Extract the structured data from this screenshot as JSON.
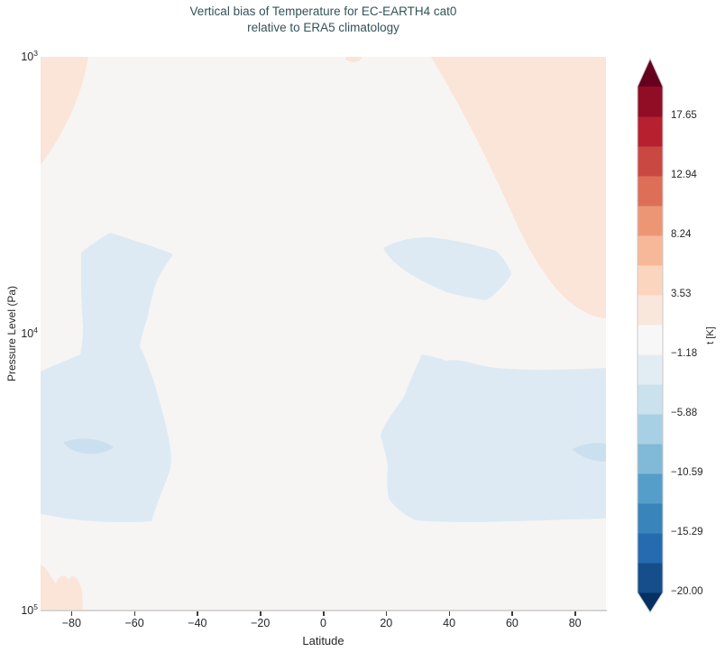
{
  "title": {
    "line1": "Vertical bias of Temperature for EC-EARTH4 cat0",
    "line2": "relative to ERA5 climatology"
  },
  "axes": {
    "x": {
      "label": "Latitude",
      "range": [
        -90,
        90
      ],
      "ticks": [
        {
          "value": -80,
          "label": "−80"
        },
        {
          "value": -60,
          "label": "−60"
        },
        {
          "value": -40,
          "label": "−40"
        },
        {
          "value": -20,
          "label": "−20"
        },
        {
          "value": 0,
          "label": "0"
        },
        {
          "value": 20,
          "label": "20"
        },
        {
          "value": 40,
          "label": "40"
        },
        {
          "value": 60,
          "label": "60"
        },
        {
          "value": 80,
          "label": "80"
        }
      ]
    },
    "y": {
      "label": "Pressure Level (Pa)",
      "scale": "log",
      "ticks": [
        {
          "base": "10",
          "exp": "3"
        },
        {
          "base": "10",
          "exp": "4"
        },
        {
          "base": "10",
          "exp": "5"
        }
      ]
    }
  },
  "colorbar": {
    "label": "t [K]",
    "tick_labels_top_to_bottom": [
      "17.65",
      "12.94",
      "8.24",
      "3.53",
      "−1.18",
      "−5.88",
      "−10.59",
      "−15.29",
      "−20.00"
    ],
    "range": [
      -20,
      20
    ],
    "level_step": 2.353,
    "under_color": "#053061",
    "over_color": "#67001F",
    "segments_bottom_to_top": [
      "#154E8B",
      "#256BAF",
      "#3884BB",
      "#559EC9",
      "#80BAD8",
      "#A7D0E4",
      "#CAE1EE",
      "#E2EDF3",
      "#F7F7F7",
      "#FAE7DC",
      "#FCD5BF",
      "#F7B799",
      "#ED9676",
      "#DD6F59",
      "#CA4842",
      "#B6202F",
      "#910D26"
    ],
    "outline_color": "#c9c9c9"
  },
  "colors": {
    "page_background": "#ffffff",
    "plot_background": "#f6f5f4",
    "warm_light": "#fae5d8",
    "cool_light": "#deeaf3",
    "cool_mid": "#cbe0ee",
    "title_text": "#325359",
    "tick_text": "#262626",
    "spine": "#d6d5d4"
  },
  "chart_data": {
    "type": "heatmap",
    "subtype": "filled-contour",
    "title": "Vertical bias of Temperature for EC-EARTH4 cat0 relative to ERA5 climatology",
    "xlabel": "Latitude",
    "ylabel": "Pressure Level (Pa)",
    "value_label": "t [K]",
    "x_range": [
      -90,
      90
    ],
    "y_scale": "log",
    "y_range_pa": [
      1000,
      100000
    ],
    "colormap": "RdBu_r diverging, discrete levels, extend both ends",
    "contour_levels": [
      -20.0,
      -17.65,
      -15.29,
      -12.94,
      -10.59,
      -8.24,
      -5.88,
      -3.53,
      -1.18,
      1.18,
      3.53,
      5.88,
      8.24,
      10.59,
      12.94,
      15.29,
      17.65,
      20.0
    ],
    "background_value_range_k": [
      -1.18,
      1.18
    ],
    "features": [
      {
        "sign": "warm",
        "value_range_k": [
          1.18,
          3.53
        ],
        "lat_range": [
          -90,
          -75
        ],
        "pressure_pa_range": [
          1000,
          2400
        ],
        "description": "pale orange wedge in top-left corner"
      },
      {
        "sign": "warm",
        "value_range_k": [
          1.18,
          3.53
        ],
        "lat_range": [
          34,
          90
        ],
        "pressure_pa_range": [
          1000,
          8700
        ],
        "description": "large pale orange region across top-right corner"
      },
      {
        "sign": "warm",
        "value_range_k": [
          1.18,
          3.53
        ],
        "lat_range": [
          6,
          11
        ],
        "pressure_pa_range": [
          1000,
          1100
        ],
        "description": "tiny pale orange bump at top edge near lat 8"
      },
      {
        "sign": "warm",
        "value_range_k": [
          1.18,
          3.53
        ],
        "lat_range": [
          -90,
          -77
        ],
        "pressure_pa_range": [
          69000,
          100000
        ],
        "description": "pale orange patch in bottom-left corner with wiggly top edge"
      },
      {
        "sign": "cool",
        "value_range_k": [
          -3.53,
          -1.18
        ],
        "lat_range": [
          -78,
          -48
        ],
        "pressure_pa_range": [
          4300,
          11000
        ],
        "description": "light blue blob upper southern mid-levels, narrowing downward into a column"
      },
      {
        "sign": "cool",
        "value_range_k": [
          -3.53,
          -1.18
        ],
        "lat_range": [
          19,
          63
        ],
        "pressure_pa_range": [
          4500,
          7900
        ],
        "description": "light blue blob upper northern mid-levels with jagged lower edge"
      },
      {
        "sign": "cool",
        "value_range_k": [
          -3.53,
          -1.18
        ],
        "lat_range": [
          -90,
          -50
        ],
        "pressure_pa_range": [
          11800,
          47000
        ],
        "description": "broad light blue lower-tropospheric region, southern high latitudes"
      },
      {
        "sign": "cool",
        "value_range_k": [
          -3.53,
          -1.18
        ],
        "lat_range": [
          17,
          90
        ],
        "pressure_pa_range": [
          11800,
          47000
        ],
        "description": "broad light blue lower-tropospheric region, northern mid-to-high latitudes"
      },
      {
        "sign": "cool",
        "value_range_k": [
          -5.88,
          -3.53
        ],
        "lat_range": [
          -83,
          -67
        ],
        "pressure_pa_range": [
          24000,
          27000
        ],
        "description": "small darker blue lens inside southern lower blue region"
      },
      {
        "sign": "cool",
        "value_range_k": [
          -5.88,
          -3.53
        ],
        "lat_range": [
          79,
          90
        ],
        "pressure_pa_range": [
          24000,
          28000
        ],
        "description": "small darker blue lens at right edge inside northern lower blue region"
      }
    ]
  }
}
